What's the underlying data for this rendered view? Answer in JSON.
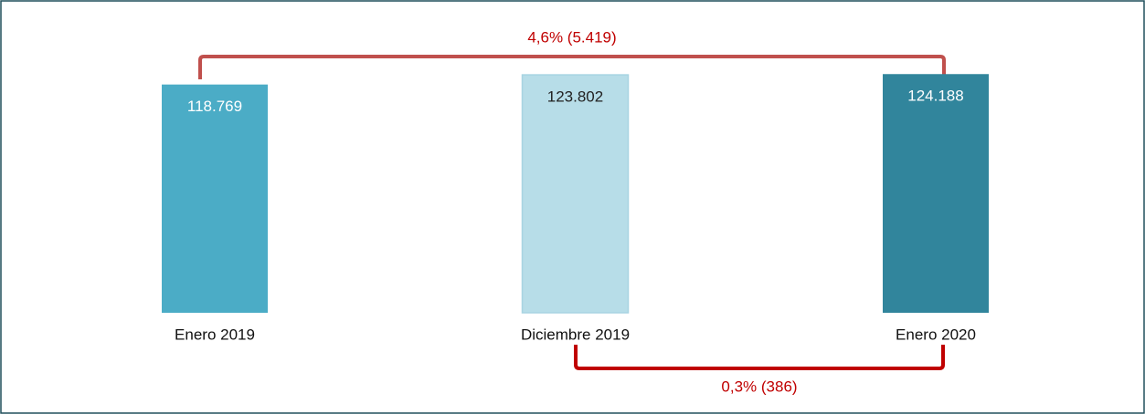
{
  "chart_data": {
    "type": "bar",
    "categories": [
      "Enero 2019",
      "Diciembre 2019",
      "Enero 2020"
    ],
    "values": [
      118769,
      123802,
      124188
    ],
    "value_labels": [
      "118.769",
      "123.802",
      "124.188"
    ],
    "colors": [
      "#4bacc6",
      "#b7dde8",
      "#31859c"
    ],
    "ylim": [
      0,
      130000
    ],
    "annotations": [
      "4,6% (5.419)",
      "0,3% (386)"
    ]
  }
}
